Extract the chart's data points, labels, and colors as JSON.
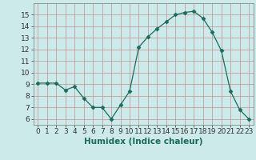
{
  "x": [
    0,
    1,
    2,
    3,
    4,
    5,
    6,
    7,
    8,
    9,
    10,
    11,
    12,
    13,
    14,
    15,
    16,
    17,
    18,
    19,
    20,
    21,
    22,
    23
  ],
  "y": [
    9.1,
    9.1,
    9.1,
    8.5,
    8.8,
    7.8,
    7.0,
    7.0,
    6.0,
    7.2,
    8.4,
    12.2,
    13.1,
    13.8,
    14.4,
    15.0,
    15.2,
    15.3,
    14.7,
    13.5,
    11.9,
    8.4,
    6.8,
    6.0
  ],
  "line_color": "#1a6b5a",
  "marker": "D",
  "marker_size": 2.5,
  "bg_color": "#cceaea",
  "grid_color": "#c09090",
  "xlabel": "Humidex (Indice chaleur)",
  "xlim": [
    -0.5,
    23.5
  ],
  "ylim": [
    5.5,
    16.0
  ],
  "yticks": [
    6,
    7,
    8,
    9,
    10,
    11,
    12,
    13,
    14,
    15
  ],
  "xticks": [
    0,
    1,
    2,
    3,
    4,
    5,
    6,
    7,
    8,
    9,
    10,
    11,
    12,
    13,
    14,
    15,
    16,
    17,
    18,
    19,
    20,
    21,
    22,
    23
  ],
  "xlabel_fontsize": 7.5,
  "tick_fontsize": 6.5
}
